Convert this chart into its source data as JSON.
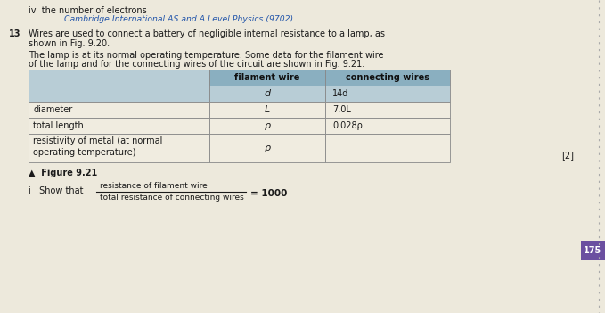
{
  "page_bg": "#ede9dc",
  "header_line1": "iv  the number of electrons",
  "header_line2": "Cambridge International AS and A Level Physics (9702)",
  "q13_num": "13",
  "q13_line1": "Wires are used to connect a battery of negligible internal resistance to a lamp, as",
  "q13_line2": "shown in Fig. 9.20.",
  "para_line1": "The lamp is at its normal operating temperature. Some data for the filament wire",
  "para_line2": "of the lamp and for the connecting wires of the circuit are shown in Fig. 9.21.",
  "col_header2": "filament wire",
  "col_header3": "connecting wires",
  "row0_col2": "d",
  "row0_col3": "14d",
  "row1_label": "diameter",
  "row1_col2": "L",
  "row1_col3": "7.0L",
  "row2_label": "total length",
  "row2_col2": "ρ",
  "row2_col3": "0.028ρ",
  "row3_label": "resistivity of metal (at normal",
  "row3_label2": "operating temperature)",
  "figure_label": "▲  Figure 9.21",
  "marks": "[2]",
  "show_label": "i   Show that",
  "frac_num": "resistance of filament wire",
  "frac_den": "total resistance of connecting wires",
  "frac_eq": "= 1000",
  "page_number": "175",
  "table_header_bg": "#8aafc0",
  "table_header_bg2": "#b8cdd6",
  "table_row_white": "#f0ece0",
  "table_row_light": "#dce8ef",
  "table_border": "#888888",
  "text_color": "#1a1a1a",
  "italic_color": "#2255aa",
  "page_num_bg": "#6b4fa0"
}
